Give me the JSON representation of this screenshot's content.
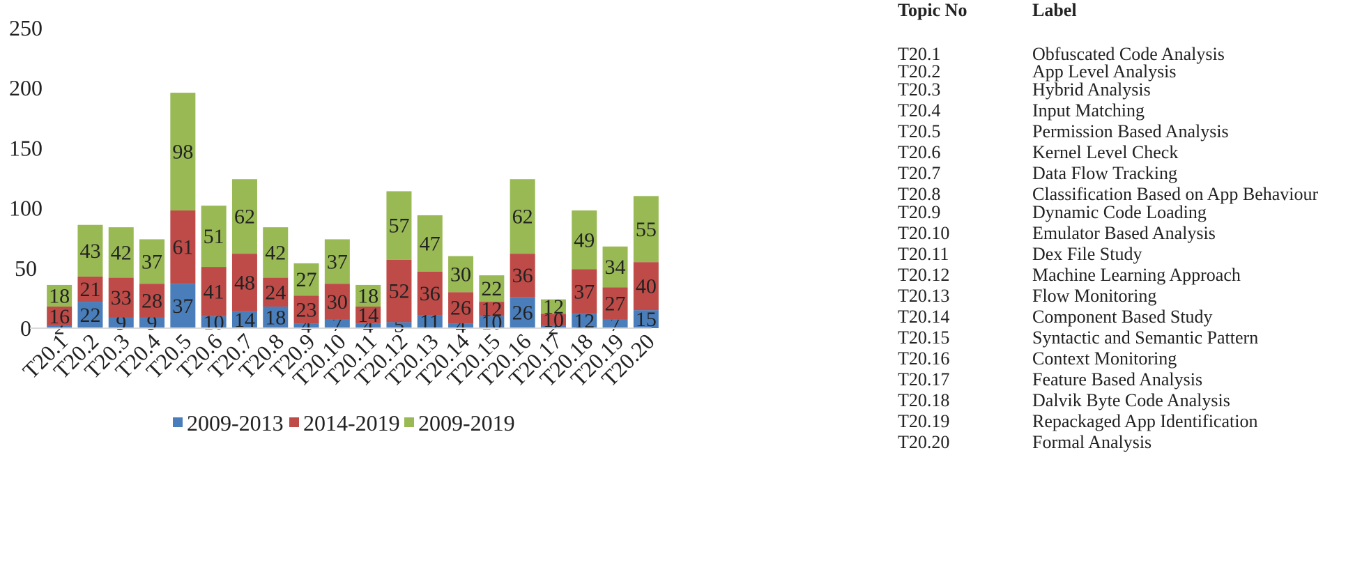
{
  "chart_data": {
    "type": "bar",
    "stacked": true,
    "categories": [
      "T20.1",
      "T20.2",
      "T20.3",
      "T20.4",
      "T20.5",
      "T20.6",
      "T20.7",
      "T20.8",
      "T20.9",
      "T20.10",
      "T20.11",
      "T20.12",
      "T20.13",
      "T20.14",
      "T20.15",
      "T20.16",
      "T20.17",
      "T20.18",
      "T20.19",
      "T20.20"
    ],
    "series": [
      {
        "name": "2009-2013",
        "color": "#4a7ebb",
        "values": [
          2,
          22,
          9,
          9,
          37,
          10,
          14,
          18,
          4,
          7,
          4,
          5,
          11,
          4,
          10,
          26,
          2,
          12,
          7,
          15
        ]
      },
      {
        "name": "2014-2019",
        "color": "#be4b48",
        "values": [
          16,
          21,
          33,
          28,
          61,
          41,
          48,
          24,
          23,
          30,
          14,
          52,
          36,
          26,
          12,
          36,
          10,
          37,
          27,
          40
        ]
      },
      {
        "name": "2009-2019",
        "color": "#98b954",
        "values": [
          18,
          43,
          42,
          37,
          98,
          51,
          62,
          42,
          27,
          37,
          18,
          57,
          47,
          30,
          22,
          62,
          12,
          49,
          34,
          55
        ]
      }
    ],
    "ylim": [
      0,
      250
    ],
    "yticks": [
      0,
      50,
      100,
      150,
      200,
      250
    ],
    "title": "",
    "xlabel": "",
    "ylabel": "",
    "grid": false,
    "legend_position": "bottom"
  },
  "topic_table": {
    "header_no": "Topic No",
    "header_label": "Label",
    "rows": [
      {
        "no": "T20.1",
        "label": "Obfuscated Code Analysis"
      },
      {
        "no": "T20.2",
        "label": "App Level Analysis"
      },
      {
        "no": "T20.3",
        "label": "Hybrid Analysis"
      },
      {
        "no": "T20.4",
        "label": "Input Matching"
      },
      {
        "no": "T20.5",
        "label": "Permission Based Analysis"
      },
      {
        "no": "T20.6",
        "label": "Kernel Level Check"
      },
      {
        "no": "T20.7",
        "label": "Data Flow Tracking"
      },
      {
        "no": "T20.8",
        "label": "Classification Based on App Behaviour"
      },
      {
        "no": "T20.9",
        "label": "Dynamic Code Loading"
      },
      {
        "no": "T20.10",
        "label": "Emulator Based Analysis"
      },
      {
        "no": "T20.11",
        "label": "Dex File Study"
      },
      {
        "no": "T20.12",
        "label": "Machine Learning Approach"
      },
      {
        "no": "T20.13",
        "label": "Flow Monitoring"
      },
      {
        "no": "T20.14",
        "label": "Component Based Study"
      },
      {
        "no": "T20.15",
        "label": "Syntactic and Semantic Pattern"
      },
      {
        "no": "T20.16",
        "label": "Context Monitoring"
      },
      {
        "no": "T20.17",
        "label": "Feature Based Analysis"
      },
      {
        "no": "T20.18",
        "label": "Dalvik Byte Code Analysis"
      },
      {
        "no": "T20.19",
        "label": "Repackaged App Identification"
      },
      {
        "no": "T20.20",
        "label": "Formal Analysis"
      }
    ]
  }
}
